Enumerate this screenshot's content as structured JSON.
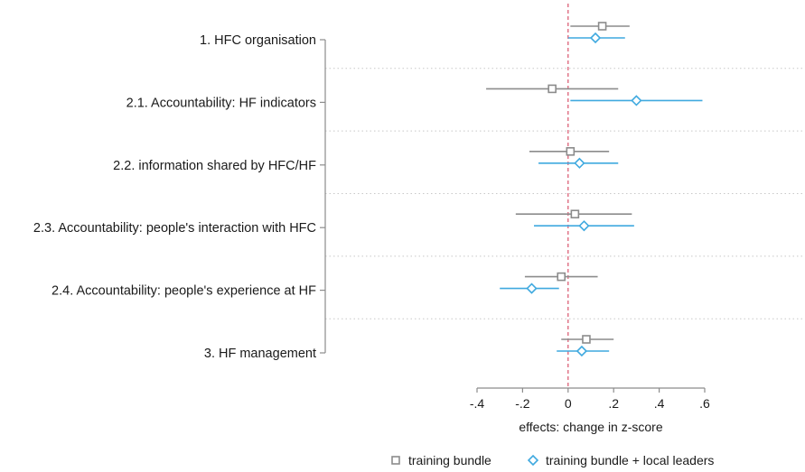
{
  "chart_data": {
    "type": "scatter",
    "subtype": "coefficient-plot",
    "orientation": "horizontal",
    "categories": [
      "1. HFC organisation",
      "2.1. Accountability: HF indicators",
      "2.2. information shared by HFC/HF",
      "2.3. Accountability: people's interaction with HFC",
      "2.4. Accountability: people's experience at HF",
      "3. HF management"
    ],
    "series": [
      {
        "name": "training bundle",
        "marker": "square",
        "color": "#8c8c8c",
        "values": [
          0.15,
          -0.07,
          0.01,
          0.03,
          -0.03,
          0.08
        ],
        "ci_low": [
          0.01,
          -0.36,
          -0.17,
          -0.23,
          -0.19,
          -0.03
        ],
        "ci_high": [
          0.27,
          0.22,
          0.18,
          0.28,
          0.13,
          0.2
        ]
      },
      {
        "name": "training bundle + local leaders",
        "marker": "diamond",
        "color": "#3fa9df",
        "values": [
          0.12,
          0.3,
          0.05,
          0.07,
          -0.16,
          0.06
        ],
        "ci_low": [
          0.0,
          0.01,
          -0.13,
          -0.15,
          -0.3,
          -0.05
        ],
        "ci_high": [
          0.25,
          0.59,
          0.22,
          0.29,
          -0.04,
          0.18
        ]
      }
    ],
    "xlabel": "effects: change in z-score",
    "xlim": [
      -0.4,
      0.6
    ],
    "xticks": [
      -0.4,
      -0.2,
      0,
      0.2,
      0.4,
      0.6
    ],
    "xtick_labels": [
      "-.4",
      "-.2",
      "0",
      ".2",
      ".4",
      ".6"
    ],
    "reference_line": 0,
    "reference_color": "#d9536b",
    "grid": true,
    "legend_position": "bottom"
  }
}
